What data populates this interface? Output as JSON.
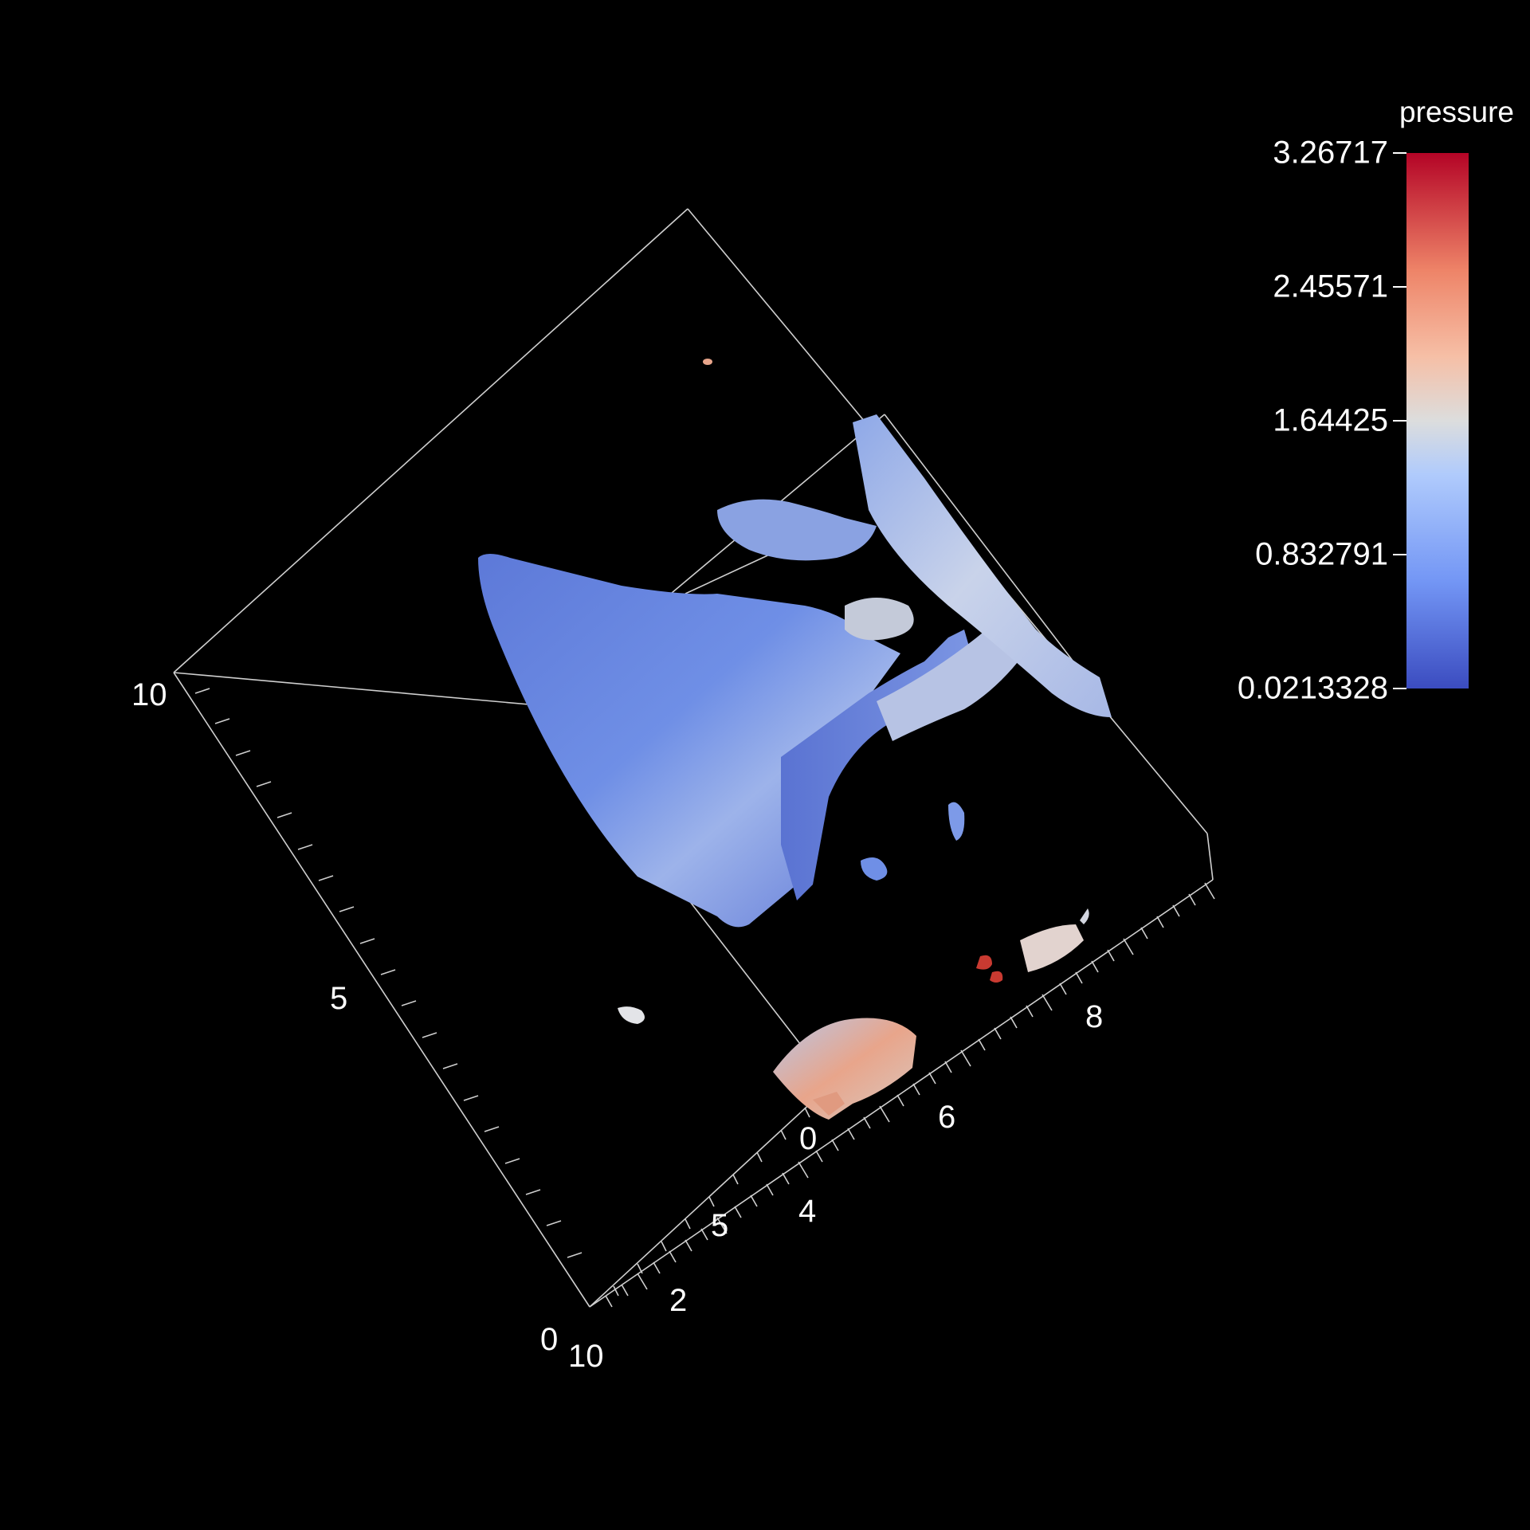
{
  "colorbar": {
    "title": "pressure",
    "labels": [
      "3.26717",
      "2.45571",
      "1.64425",
      "0.832791",
      "0.0213328"
    ],
    "colors": [
      "#3b4cc0",
      "#7396f5",
      "#dcdddd",
      "#ee8468",
      "#b40426"
    ]
  },
  "axes": {
    "left_axis": [
      "10",
      "5",
      "0"
    ],
    "right_axis": [
      "8",
      "6",
      "4",
      "2",
      "10"
    ],
    "inner_axis": [
      "0",
      "5"
    ]
  }
}
